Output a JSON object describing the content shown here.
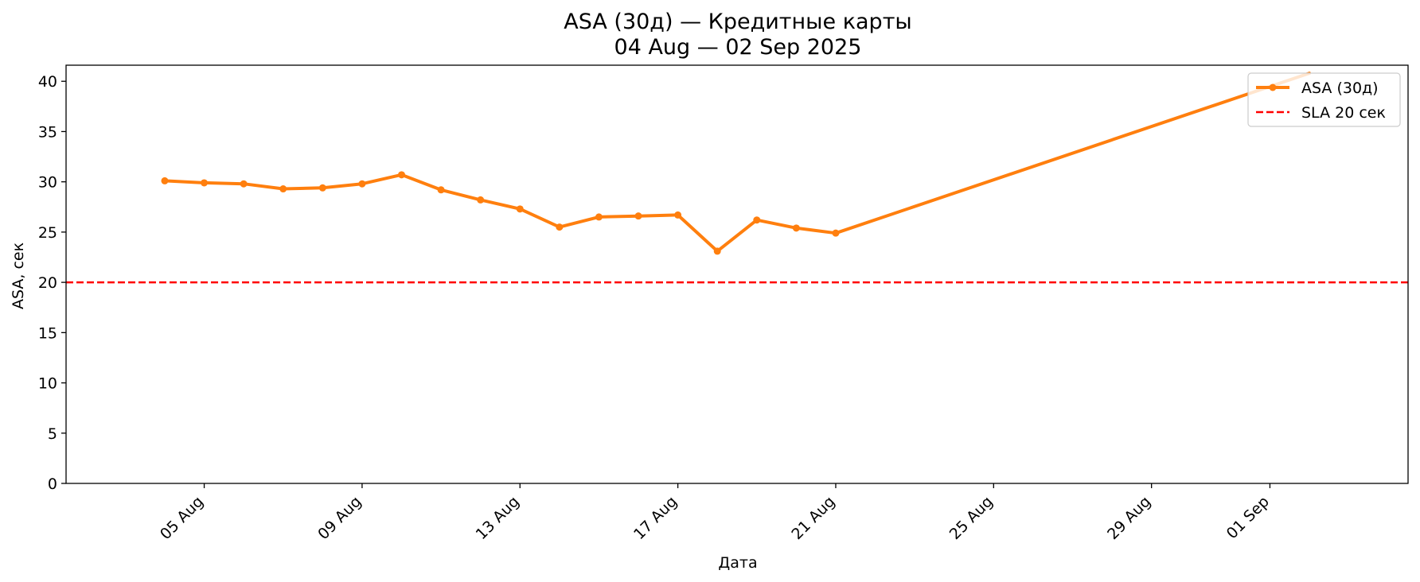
{
  "chart_data": {
    "type": "line",
    "title": "ASA (30д) — Кредитные карты",
    "subtitle": "04 Aug — 02 Sep 2025",
    "xlabel": "Дата",
    "ylabel": "ASA, сек",
    "ylim": [
      0,
      41.6
    ],
    "xlim": [
      "2025-08-01T12:00",
      "2025-09-04T12:00"
    ],
    "yticks": [
      0,
      5,
      10,
      15,
      20,
      25,
      30,
      35,
      40
    ],
    "xticks": [
      {
        "date": "2025-08-05",
        "label": "05 Aug"
      },
      {
        "date": "2025-08-09",
        "label": "09 Aug"
      },
      {
        "date": "2025-08-13",
        "label": "13 Aug"
      },
      {
        "date": "2025-08-17",
        "label": "17 Aug"
      },
      {
        "date": "2025-08-21",
        "label": "21 Aug"
      },
      {
        "date": "2025-08-25",
        "label": "25 Aug"
      },
      {
        "date": "2025-08-29",
        "label": "29 Aug"
      },
      {
        "date": "2025-09-01",
        "label": "01 Sep"
      }
    ],
    "series": [
      {
        "name": "ASA (30д)",
        "color": "#ff7f0e",
        "x": [
          "2025-08-04",
          "2025-08-05",
          "2025-08-06",
          "2025-08-07",
          "2025-08-08",
          "2025-08-09",
          "2025-08-10",
          "2025-08-11",
          "2025-08-12",
          "2025-08-13",
          "2025-08-14",
          "2025-08-15",
          "2025-08-16",
          "2025-08-17",
          "2025-08-18",
          "2025-08-19",
          "2025-08-20",
          "2025-08-21",
          "2025-09-02"
        ],
        "y": [
          30.1,
          29.9,
          29.8,
          29.3,
          29.4,
          29.8,
          30.7,
          29.2,
          28.2,
          27.3,
          25.5,
          26.5,
          26.6,
          26.7,
          23.1,
          26.2,
          25.4,
          24.9,
          40.8
        ]
      }
    ],
    "reference_lines": [
      {
        "name": "SLA 20 сек",
        "y": 20,
        "color": "#ff0000",
        "style": "dashed"
      }
    ],
    "legend": {
      "position": "top-right"
    },
    "grid": false
  }
}
